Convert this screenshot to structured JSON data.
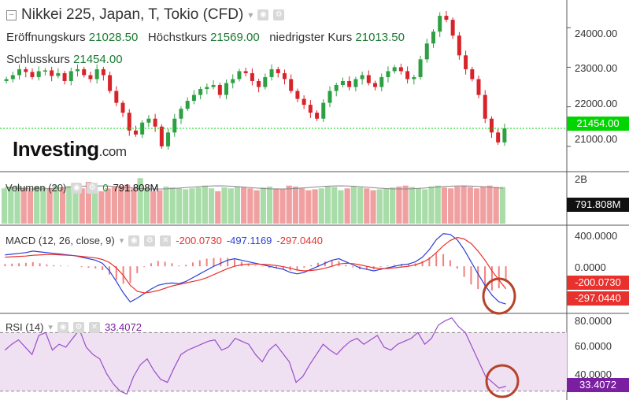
{
  "header": {
    "title": "Nikkei 225, Japan, T, Tokio (CFD)",
    "open_label": "Eröffnungskurs",
    "open_value": "21028.50",
    "high_label": "Höchstkurs",
    "high_value": "21569.00",
    "low_label": "niedrigster Kurs",
    "low_value": "21013.50",
    "close_label": "Schlusskurs",
    "close_value": "21454.00"
  },
  "brand": {
    "name": "Investing",
    "suffix": ".com"
  },
  "colors": {
    "up": "#2ea043",
    "down": "#d9232b",
    "macd": "#2b3fd6",
    "signal": "#e8312d",
    "rsi": "#9a4fc9",
    "rsi_band": "#efe0f2",
    "last_price": "#00d500",
    "rsi_tag": "#7b1fa2"
  },
  "price_axis": {
    "ticks": [
      "24000.00",
      "23000.00",
      "22000.00",
      "21000.00"
    ],
    "last": "21454.00"
  },
  "volume": {
    "label": "Volumen (20)",
    "value_a": "0",
    "value_b": "791.808M",
    "axis_tick": "2B",
    "last": "791.808M"
  },
  "macd": {
    "label": "MACD (12, 26, close, 9)",
    "hist": "-200.0730",
    "macd": "-497.1169",
    "signal": "-297.0440",
    "axis_ticks": [
      "400.0000",
      "0.0000"
    ],
    "tags": [
      "-200.0730",
      "-297.0440"
    ]
  },
  "rsi": {
    "label": "RSI (14)",
    "value": "33.4072",
    "axis_ticks": [
      "80.0000",
      "60.0000",
      "40.0000"
    ],
    "last": "33.4072"
  },
  "chart_data": [
    {
      "type": "candlestick",
      "title": "Nikkei 225, Japan, T, Tokio (CFD)",
      "ylim": [
        20400,
        24700
      ],
      "series": [
        {
          "values": [
            22700,
            22800,
            22950,
            22880,
            22750,
            22900,
            22920,
            22780,
            22850,
            22650,
            22900,
            22950,
            22800,
            22700,
            22950,
            22800,
            22400,
            22100,
            21850,
            21400,
            21300,
            21600,
            21700,
            21500,
            21000,
            21350,
            21700,
            21950,
            22150,
            22300,
            22450,
            22500,
            22550,
            22300,
            22600,
            22700,
            22900,
            22850,
            22650,
            22500,
            22750,
            22950,
            22850,
            22700,
            22400,
            22200,
            22050,
            21850,
            21700,
            22100,
            22400,
            22550,
            22650,
            22500,
            22700,
            22800,
            22600,
            22500,
            22750,
            22900,
            23000,
            22900,
            22700,
            22750,
            23200,
            23600,
            23900,
            24300,
            24200,
            23800,
            23300,
            22950,
            22700,
            22300,
            21700,
            21350,
            21100,
            21454
          ]
        }
      ]
    },
    {
      "type": "bar",
      "title": "Volumen (20)",
      "ylim": [
        0,
        2000000000
      ],
      "values": [
        760,
        800,
        820,
        780,
        720,
        800,
        790,
        760,
        820,
        770,
        810,
        740,
        760,
        900,
        820,
        700,
        760,
        790,
        810,
        840,
        760,
        980,
        760,
        700,
        720,
        800,
        780,
        760,
        740,
        760,
        780,
        820,
        760,
        700,
        780,
        760,
        800,
        790,
        760,
        720,
        780,
        800,
        760,
        740,
        820,
        800,
        760,
        720,
        740,
        760,
        800,
        790,
        720,
        760,
        800,
        780,
        760,
        720,
        740,
        760,
        780,
        800,
        820,
        790,
        760,
        740,
        800,
        820,
        780,
        760,
        800,
        820,
        790,
        760,
        800,
        820,
        790,
        792
      ]
    },
    {
      "type": "line",
      "title": "MACD (12, 26, close, 9)",
      "ylim": [
        -600,
        500
      ],
      "series": [
        {
          "values": [
            150,
            160,
            170,
            180,
            200,
            190,
            180,
            170,
            160,
            150,
            140,
            120,
            100,
            80,
            40,
            -60,
            -200,
            -350,
            -470,
            -420,
            -360,
            -300,
            -250,
            -230,
            -220,
            -230,
            -200,
            -150,
            -100,
            -50,
            0,
            40,
            80,
            100,
            80,
            60,
            40,
            20,
            0,
            -20,
            -40,
            -80,
            -100,
            -80,
            -40,
            0,
            40,
            80,
            100,
            60,
            20,
            -20,
            -40,
            -60,
            -40,
            -20,
            0,
            20,
            30,
            60,
            120,
            220,
            350,
            430,
            420,
            350,
            220,
            60,
            -100,
            -250,
            -380,
            -470,
            -497
          ]
        },
        {
          "values": [
            120,
            125,
            130,
            135,
            145,
            150,
            155,
            155,
            150,
            145,
            140,
            130,
            120,
            110,
            90,
            50,
            -20,
            -120,
            -250,
            -330,
            -350,
            -340,
            -320,
            -290,
            -260,
            -240,
            -220,
            -200,
            -180,
            -150,
            -110,
            -70,
            -30,
            0,
            20,
            30,
            30,
            25,
            20,
            10,
            -5,
            -25,
            -50,
            -60,
            -55,
            -45,
            -25,
            0,
            30,
            40,
            35,
            20,
            0,
            -20,
            -30,
            -30,
            -20,
            -10,
            0,
            20,
            50,
            100,
            180,
            270,
            340,
            380,
            360,
            300,
            200,
            80,
            -60,
            -180,
            -297
          ]
        }
      ]
    },
    {
      "type": "line",
      "title": "RSI (14)",
      "ylim": [
        25,
        82
      ],
      "values": [
        58,
        62,
        65,
        60,
        55,
        68,
        70,
        58,
        62,
        60,
        66,
        72,
        60,
        55,
        52,
        42,
        35,
        30,
        28,
        40,
        48,
        52,
        44,
        38,
        36,
        46,
        55,
        58,
        60,
        62,
        64,
        65,
        58,
        60,
        66,
        64,
        62,
        55,
        50,
        58,
        62,
        56,
        50,
        36,
        40,
        48,
        55,
        62,
        58,
        55,
        60,
        64,
        66,
        62,
        65,
        68,
        60,
        58,
        62,
        64,
        66,
        70,
        62,
        66,
        75,
        78,
        80,
        74,
        70,
        60,
        50,
        40,
        36,
        32,
        33.4072
      ]
    }
  ]
}
